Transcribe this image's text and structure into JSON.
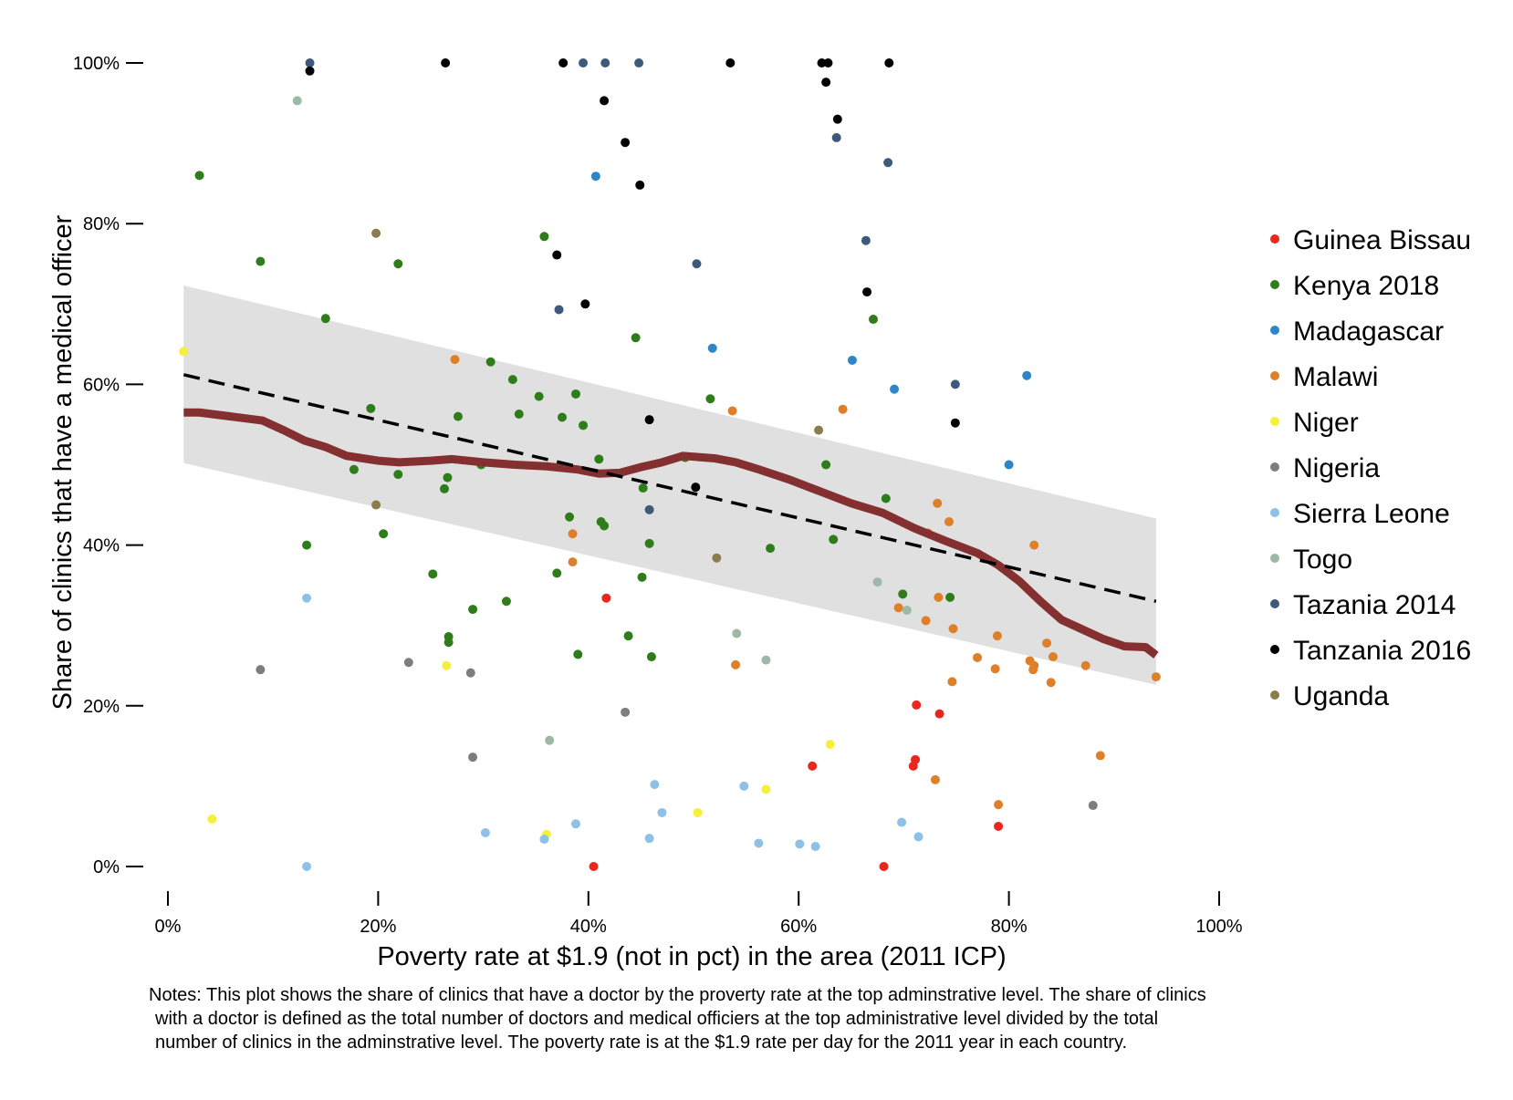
{
  "chart_data": {
    "type": "scatter",
    "xlabel": "Poverty rate at $1.9 (not in pct) in the area (2011 ICP)",
    "ylabel": "Share of clinics that have a medical officer",
    "xlim": [
      0,
      1
    ],
    "ylim": [
      0,
      1
    ],
    "x_ticks": [
      0,
      0.2,
      0.4,
      0.6,
      0.8,
      1.0
    ],
    "x_tick_labels": [
      "0%",
      "20%",
      "40%",
      "60%",
      "80%",
      "100%"
    ],
    "y_ticks": [
      0,
      0.2,
      0.4,
      0.6,
      0.8,
      1.0
    ],
    "y_tick_labels": [
      "0%",
      "20%",
      "40%",
      "60%",
      "80%",
      "100%"
    ],
    "grid": false,
    "legend_position": "right",
    "series": [
      {
        "name": "Guinea Bissau",
        "color": "#e8281e",
        "points": [
          [
            0.405,
            0.0
          ],
          [
            0.417,
            0.334
          ],
          [
            0.613,
            0.125
          ],
          [
            0.681,
            0.0
          ],
          [
            0.709,
            0.125
          ],
          [
            0.711,
            0.133
          ],
          [
            0.712,
            0.201
          ],
          [
            0.734,
            0.19
          ],
          [
            0.79,
            0.05
          ]
        ]
      },
      {
        "name": "Kenya 2018",
        "color": "#2e7d1a",
        "points": [
          [
            0.03,
            0.86
          ],
          [
            0.088,
            0.753
          ],
          [
            0.15,
            0.682
          ],
          [
            0.193,
            0.57
          ],
          [
            0.219,
            0.75
          ],
          [
            0.205,
            0.414
          ],
          [
            0.219,
            0.488
          ],
          [
            0.263,
            0.47
          ],
          [
            0.266,
            0.484
          ],
          [
            0.276,
            0.56
          ],
          [
            0.29,
            0.32
          ],
          [
            0.307,
            0.628
          ],
          [
            0.334,
            0.563
          ],
          [
            0.37,
            0.365
          ],
          [
            0.39,
            0.264
          ],
          [
            0.41,
            0.507
          ],
          [
            0.438,
            0.287
          ],
          [
            0.445,
            0.658
          ],
          [
            0.46,
            0.261
          ],
          [
            0.516,
            0.582
          ],
          [
            0.573,
            0.396
          ],
          [
            0.626,
            0.5
          ],
          [
            0.633,
            0.407
          ],
          [
            0.671,
            0.681
          ],
          [
            0.683,
            0.458
          ],
          [
            0.699,
            0.339
          ],
          [
            0.744,
            0.335
          ],
          [
            0.177,
            0.494
          ],
          [
            0.132,
            0.4
          ],
          [
            0.252,
            0.364
          ],
          [
            0.267,
            0.286
          ],
          [
            0.267,
            0.279
          ],
          [
            0.298,
            0.5
          ],
          [
            0.322,
            0.33
          ],
          [
            0.328,
            0.606
          ],
          [
            0.358,
            0.784
          ],
          [
            0.353,
            0.585
          ],
          [
            0.375,
            0.559
          ],
          [
            0.388,
            0.588
          ],
          [
            0.395,
            0.549
          ],
          [
            0.382,
            0.435
          ],
          [
            0.412,
            0.429
          ],
          [
            0.415,
            0.424
          ],
          [
            0.451,
            0.36
          ],
          [
            0.452,
            0.471
          ],
          [
            0.458,
            0.402
          ],
          [
            0.492,
            0.509
          ]
        ]
      },
      {
        "name": "Madagascar",
        "color": "#2e86c8",
        "points": [
          [
            0.407,
            0.859
          ],
          [
            0.518,
            0.645
          ],
          [
            0.651,
            0.63
          ],
          [
            0.691,
            0.594
          ],
          [
            0.8,
            0.5
          ],
          [
            0.817,
            0.611
          ]
        ]
      },
      {
        "name": "Malawi",
        "color": "#de7f2a",
        "points": [
          [
            0.273,
            0.631
          ],
          [
            0.385,
            0.414
          ],
          [
            0.385,
            0.379
          ],
          [
            0.537,
            0.567
          ],
          [
            0.54,
            0.251
          ],
          [
            0.642,
            0.569
          ],
          [
            0.695,
            0.322
          ],
          [
            0.721,
            0.306
          ],
          [
            0.723,
            0.415
          ],
          [
            0.73,
            0.108
          ],
          [
            0.732,
            0.452
          ],
          [
            0.733,
            0.335
          ],
          [
            0.743,
            0.429
          ],
          [
            0.746,
            0.23
          ],
          [
            0.747,
            0.296
          ],
          [
            0.77,
            0.26
          ],
          [
            0.787,
            0.246
          ],
          [
            0.789,
            0.287
          ],
          [
            0.79,
            0.077
          ],
          [
            0.82,
            0.256
          ],
          [
            0.824,
            0.25
          ],
          [
            0.823,
            0.245
          ],
          [
            0.824,
            0.4
          ],
          [
            0.836,
            0.278
          ],
          [
            0.84,
            0.229
          ],
          [
            0.842,
            0.261
          ],
          [
            0.873,
            0.25
          ],
          [
            0.887,
            0.138
          ],
          [
            0.94,
            0.236
          ]
        ]
      },
      {
        "name": "Niger",
        "color": "#f5f03a",
        "points": [
          [
            0.015,
            0.641
          ],
          [
            0.042,
            0.059
          ],
          [
            0.265,
            0.25
          ],
          [
            0.36,
            0.04
          ],
          [
            0.504,
            0.067
          ],
          [
            0.569,
            0.096
          ],
          [
            0.63,
            0.152
          ]
        ]
      },
      {
        "name": "Nigeria",
        "color": "#7d7d7d",
        "points": [
          [
            0.088,
            0.245
          ],
          [
            0.229,
            0.254
          ],
          [
            0.288,
            0.241
          ],
          [
            0.29,
            0.136
          ],
          [
            0.435,
            0.192
          ],
          [
            0.88,
            0.076
          ]
        ]
      },
      {
        "name": "Sierra Leone",
        "color": "#8ec1e8",
        "points": [
          [
            0.132,
            0.334
          ],
          [
            0.132,
            0.0
          ],
          [
            0.302,
            0.042
          ],
          [
            0.358,
            0.034
          ],
          [
            0.388,
            0.053
          ],
          [
            0.458,
            0.035
          ],
          [
            0.463,
            0.102
          ],
          [
            0.47,
            0.067
          ],
          [
            0.548,
            0.1
          ],
          [
            0.562,
            0.029
          ],
          [
            0.601,
            0.028
          ],
          [
            0.616,
            0.025
          ],
          [
            0.698,
            0.055
          ],
          [
            0.714,
            0.037
          ]
        ]
      },
      {
        "name": "Togo",
        "color": "#9cb8a6",
        "points": [
          [
            0.123,
            0.953
          ],
          [
            0.363,
            0.157
          ],
          [
            0.541,
            0.29
          ],
          [
            0.569,
            0.257
          ],
          [
            0.675,
            0.354
          ],
          [
            0.703,
            0.319
          ]
        ]
      },
      {
        "name": "Tazania 2014",
        "color": "#3d5a7a",
        "points": [
          [
            0.135,
            1.0
          ],
          [
            0.372,
            0.693
          ],
          [
            0.395,
            1.0
          ],
          [
            0.416,
            1.0
          ],
          [
            0.448,
            1.0
          ],
          [
            0.458,
            0.444
          ],
          [
            0.503,
            0.75
          ],
          [
            0.636,
            0.907
          ],
          [
            0.664,
            0.779
          ],
          [
            0.685,
            0.876
          ],
          [
            0.749,
            0.6
          ]
        ]
      },
      {
        "name": "Tanzania 2016",
        "color": "#000000",
        "points": [
          [
            0.135,
            0.99
          ],
          [
            0.264,
            1.0
          ],
          [
            0.37,
            0.761
          ],
          [
            0.376,
            1.0
          ],
          [
            0.397,
            0.7
          ],
          [
            0.415,
            0.953
          ],
          [
            0.435,
            0.901
          ],
          [
            0.449,
            0.848
          ],
          [
            0.458,
            0.556
          ],
          [
            0.502,
            0.472
          ],
          [
            0.535,
            1.0
          ],
          [
            0.622,
            1.0
          ],
          [
            0.626,
            0.976
          ],
          [
            0.628,
            1.0
          ],
          [
            0.637,
            0.93
          ],
          [
            0.665,
            0.715
          ],
          [
            0.686,
            1.0
          ],
          [
            0.749,
            0.552
          ]
        ]
      },
      {
        "name": "Uganda",
        "color": "#8b7d4a",
        "points": [
          [
            0.198,
            0.788
          ],
          [
            0.198,
            0.45
          ],
          [
            0.522,
            0.384
          ],
          [
            0.619,
            0.543
          ]
        ]
      }
    ],
    "fit_line": {
      "style": "dashed",
      "color": "#000000",
      "x": [
        0.015,
        0.94
      ],
      "y": [
        0.612,
        0.33
      ]
    },
    "confidence_band": {
      "color": "#e0e0e0",
      "x": [
        0.015,
        0.94
      ],
      "upper": [
        0.723,
        0.433
      ],
      "lower": [
        0.502,
        0.226
      ]
    },
    "smooth_line": {
      "color": "#843030",
      "x": [
        0.015,
        0.03,
        0.06,
        0.09,
        0.11,
        0.13,
        0.15,
        0.17,
        0.2,
        0.22,
        0.25,
        0.27,
        0.3,
        0.33,
        0.36,
        0.39,
        0.41,
        0.43,
        0.45,
        0.47,
        0.49,
        0.5,
        0.52,
        0.54,
        0.56,
        0.59,
        0.62,
        0.65,
        0.68,
        0.71,
        0.74,
        0.77,
        0.79,
        0.81,
        0.83,
        0.85,
        0.87,
        0.89,
        0.91,
        0.93,
        0.94
      ],
      "y": [
        0.565,
        0.565,
        0.56,
        0.555,
        0.543,
        0.53,
        0.522,
        0.511,
        0.505,
        0.503,
        0.505,
        0.507,
        0.503,
        0.5,
        0.498,
        0.494,
        0.489,
        0.49,
        0.497,
        0.503,
        0.511,
        0.51,
        0.508,
        0.503,
        0.495,
        0.482,
        0.467,
        0.452,
        0.44,
        0.421,
        0.405,
        0.39,
        0.375,
        0.355,
        0.33,
        0.307,
        0.295,
        0.283,
        0.274,
        0.273,
        0.263
      ]
    },
    "legend": [
      "Guinea Bissau",
      "Kenya 2018",
      "Madagascar",
      "Malawi",
      "Niger",
      "Nigeria",
      "Sierra Leone",
      "Togo",
      "Tazania 2014",
      "Tanzania 2016",
      "Uganda"
    ]
  },
  "notes": {
    "line1": "Notes: This plot shows the share of clinics that have a doctor by the proverty rate at the top adminstrative level. The share of clinics",
    "line2": "with a doctor is defined as the total number of doctors and medical officiers at the top administrative level divided by the total",
    "line3": "number of clinics in the adminstrative level. The poverty rate is at the $1.9 rate per day for the 2011 year in each country."
  }
}
